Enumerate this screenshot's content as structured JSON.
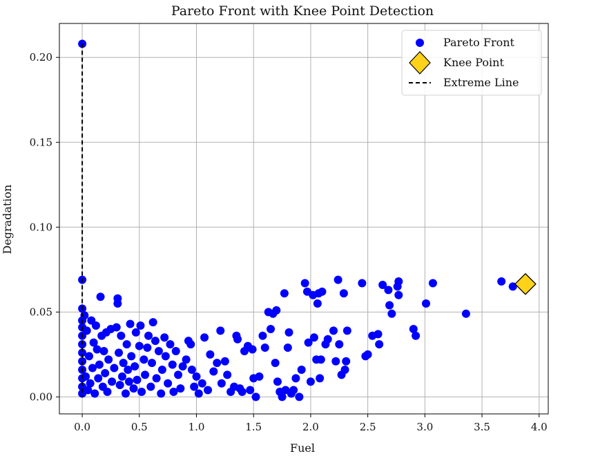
{
  "colors": {
    "pareto": "#0000ff",
    "knee_fill": "#ffd21a",
    "knee_edge": "#000000",
    "extreme_line": "#000000",
    "grid": "#b0b0b0",
    "axes": "#000000"
  },
  "chart_data": {
    "type": "scatter",
    "title": "Pareto Front with Knee Point Detection",
    "xlabel": "Fuel",
    "ylabel": "Degradation",
    "xlim": [
      -0.2,
      4.08
    ],
    "ylim": [
      -0.01,
      0.22
    ],
    "x_ticks": [
      0.0,
      0.5,
      1.0,
      1.5,
      2.0,
      2.5,
      3.0,
      3.5,
      4.0
    ],
    "x_tick_labels": [
      "0.0",
      "0.5",
      "1.0",
      "1.5",
      "2.0",
      "2.5",
      "3.0",
      "3.5",
      "4.0"
    ],
    "y_ticks": [
      0.0,
      0.05,
      0.1,
      0.15,
      0.2
    ],
    "y_tick_labels": [
      "0.00",
      "0.05",
      "0.10",
      "0.15",
      "0.20"
    ],
    "grid": true,
    "legend_position": "top-right",
    "legend": [
      {
        "label": "Pareto Front",
        "marker": "circle"
      },
      {
        "label": "Knee Point",
        "marker": "diamond"
      },
      {
        "label": "Extreme Line",
        "marker": "dashed-line"
      }
    ],
    "series": [
      {
        "name": "Pareto Front",
        "marker": "circle",
        "points": [
          [
            0.0,
            0.208
          ],
          [
            0.0,
            0.069
          ],
          [
            0.0,
            0.052
          ],
          [
            0.0,
            0.045
          ],
          [
            0.0,
            0.041
          ],
          [
            0.0,
            0.036
          ],
          [
            0.0,
            0.031
          ],
          [
            0.0,
            0.026
          ],
          [
            0.0,
            0.021
          ],
          [
            0.0,
            0.016
          ],
          [
            0.0,
            0.011
          ],
          [
            0.0,
            0.006
          ],
          [
            0.0,
            0.002
          ],
          [
            0.02,
            0.048
          ],
          [
            0.03,
            0.012
          ],
          [
            0.04,
            0.039
          ],
          [
            0.05,
            0.004
          ],
          [
            0.06,
            0.024
          ],
          [
            0.07,
            0.008
          ],
          [
            0.08,
            0.045
          ],
          [
            0.09,
            0.017
          ],
          [
            0.1,
            0.032
          ],
          [
            0.11,
            0.002
          ],
          [
            0.12,
            0.042
          ],
          [
            0.13,
            0.028
          ],
          [
            0.14,
            0.011
          ],
          [
            0.15,
            0.019
          ],
          [
            0.16,
            0.059
          ],
          [
            0.17,
            0.036
          ],
          [
            0.18,
            0.006
          ],
          [
            0.19,
            0.027
          ],
          [
            0.2,
            0.014
          ],
          [
            0.21,
            0.038
          ],
          [
            0.22,
            0.003
          ],
          [
            0.23,
            0.022
          ],
          [
            0.25,
            0.04
          ],
          [
            0.26,
            0.009
          ],
          [
            0.28,
            0.017
          ],
          [
            0.3,
            0.041
          ],
          [
            0.31,
            0.058
          ],
          [
            0.31,
            0.055
          ],
          [
            0.32,
            0.026
          ],
          [
            0.33,
            0.007
          ],
          [
            0.34,
            0.036
          ],
          [
            0.35,
            0.012
          ],
          [
            0.36,
            0.02
          ],
          [
            0.38,
            0.002
          ],
          [
            0.39,
            0.031
          ],
          [
            0.4,
            0.016
          ],
          [
            0.41,
            0.009
          ],
          [
            0.42,
            0.043
          ],
          [
            0.43,
            0.024
          ],
          [
            0.45,
            0.005
          ],
          [
            0.46,
            0.018
          ],
          [
            0.47,
            0.038
          ],
          [
            0.48,
            0.01
          ],
          [
            0.5,
            0.03
          ],
          [
            0.51,
            0.042
          ],
          [
            0.52,
            0.003
          ],
          [
            0.54,
            0.022
          ],
          [
            0.55,
            0.013
          ],
          [
            0.57,
            0.029
          ],
          [
            0.58,
            0.036
          ],
          [
            0.6,
            0.006
          ],
          [
            0.61,
            0.02
          ],
          [
            0.62,
            0.044
          ],
          [
            0.64,
            0.033
          ],
          [
            0.65,
            0.011
          ],
          [
            0.67,
            0.027
          ],
          [
            0.69,
            0.002
          ],
          [
            0.7,
            0.016
          ],
          [
            0.72,
            0.035
          ],
          [
            0.73,
            0.024
          ],
          [
            0.75,
            0.008
          ],
          [
            0.77,
            0.031
          ],
          [
            0.79,
            0.019
          ],
          [
            0.8,
            0.003
          ],
          [
            0.82,
            0.027
          ],
          [
            0.84,
            0.013
          ],
          [
            0.86,
            0.005
          ],
          [
            0.88,
            0.018
          ],
          [
            0.91,
            0.022
          ],
          [
            0.93,
            0.033
          ],
          [
            0.95,
            0.031
          ],
          [
            0.96,
            0.016
          ],
          [
            0.98,
            0.006
          ],
          [
            1.0,
            0.012
          ],
          [
            1.02,
            0.002
          ],
          [
            1.05,
            0.008
          ],
          [
            1.07,
            0.035
          ],
          [
            1.1,
            0.004
          ],
          [
            1.12,
            0.025
          ],
          [
            1.15,
            0.015
          ],
          [
            1.18,
            0.02
          ],
          [
            1.21,
            0.039
          ],
          [
            1.22,
            0.008
          ],
          [
            1.25,
            0.021
          ],
          [
            1.27,
            0.013
          ],
          [
            1.3,
            0.003
          ],
          [
            1.33,
            0.006
          ],
          [
            1.35,
            0.036
          ],
          [
            1.36,
            0.034
          ],
          [
            1.38,
            0.005
          ],
          [
            1.4,
            0.003
          ],
          [
            1.42,
            0.027
          ],
          [
            1.45,
            0.03
          ],
          [
            1.47,
            0.004
          ],
          [
            1.49,
            0.028
          ],
          [
            1.5,
            0.011
          ],
          [
            1.52,
            0.0
          ],
          [
            1.55,
            0.012
          ],
          [
            1.58,
            0.036
          ],
          [
            1.6,
            0.029
          ],
          [
            1.63,
            0.05
          ],
          [
            1.65,
            0.04
          ],
          [
            1.67,
            0.049
          ],
          [
            1.69,
            0.02
          ],
          [
            1.7,
            0.051
          ],
          [
            1.71,
            0.009
          ],
          [
            1.73,
            0.003
          ],
          [
            1.75,
            0.0
          ],
          [
            1.77,
            0.061
          ],
          [
            1.78,
            0.004
          ],
          [
            1.8,
            0.029
          ],
          [
            1.81,
            0.038
          ],
          [
            1.83,
            0.002
          ],
          [
            1.85,
            0.004
          ],
          [
            1.87,
            0.011
          ],
          [
            1.9,
            0.0
          ],
          [
            1.92,
            0.016
          ],
          [
            1.95,
            0.067
          ],
          [
            1.97,
            0.062
          ],
          [
            1.98,
            0.032
          ],
          [
            2.0,
            0.009
          ],
          [
            2.02,
            0.06
          ],
          [
            2.03,
            0.035
          ],
          [
            2.05,
            0.022
          ],
          [
            2.06,
            0.055
          ],
          [
            2.07,
            0.061
          ],
          [
            2.08,
            0.011
          ],
          [
            2.09,
            0.022
          ],
          [
            2.1,
            0.062
          ],
          [
            2.13,
            0.031
          ],
          [
            2.15,
            0.034
          ],
          [
            2.2,
            0.039
          ],
          [
            2.22,
            0.021
          ],
          [
            2.24,
            0.069
          ],
          [
            2.25,
            0.031
          ],
          [
            2.27,
            0.013
          ],
          [
            2.29,
            0.061
          ],
          [
            2.3,
            0.016
          ],
          [
            2.31,
            0.021
          ],
          [
            2.32,
            0.039
          ],
          [
            2.45,
            0.067
          ],
          [
            2.48,
            0.024
          ],
          [
            2.5,
            0.025
          ],
          [
            2.54,
            0.036
          ],
          [
            2.59,
            0.037
          ],
          [
            2.6,
            0.031
          ],
          [
            2.63,
            0.066
          ],
          [
            2.68,
            0.063
          ],
          [
            2.69,
            0.054
          ],
          [
            2.71,
            0.049
          ],
          [
            2.76,
            0.065
          ],
          [
            2.77,
            0.068
          ],
          [
            2.77,
            0.06
          ],
          [
            2.9,
            0.04
          ],
          [
            2.92,
            0.036
          ],
          [
            3.01,
            0.055
          ],
          [
            3.07,
            0.067
          ],
          [
            3.36,
            0.049
          ],
          [
            3.67,
            0.068
          ],
          [
            3.77,
            0.065
          ],
          [
            3.85,
            0.066
          ]
        ]
      },
      {
        "name": "Knee Point",
        "marker": "diamond",
        "points": [
          [
            3.88,
            0.0665
          ]
        ]
      },
      {
        "name": "Extreme Line",
        "marker": "dashed-line",
        "points": [
          [
            0.0,
            0.208
          ],
          [
            0.0,
            0.0
          ]
        ]
      }
    ]
  }
}
